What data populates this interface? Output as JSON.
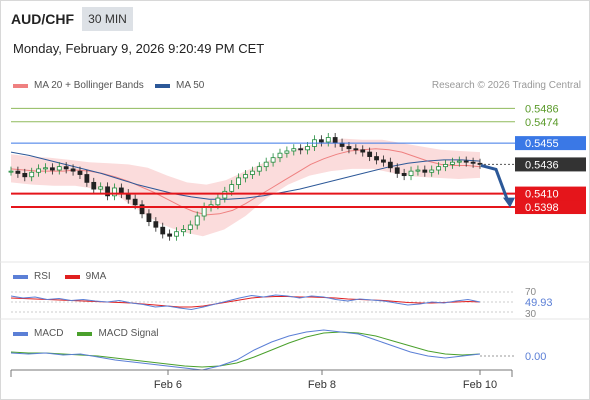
{
  "header": {
    "pair": "AUD/CHF",
    "timeframe": "30 MIN",
    "datetime": "Monday, February 9, 2026 9:20:49 PM CET",
    "credit": "Research © 2026 Trading Central"
  },
  "legend": {
    "ma20": "MA 20 + Bollinger Bands",
    "ma50": "MA 50",
    "ma20_color": "#ef8080",
    "ma50_color": "#2c5898"
  },
  "chart_data": {
    "type": "line",
    "title": "AUD/CHF",
    "x_ticks": [
      "Feb 6",
      "Feb 8",
      "Feb 10"
    ],
    "ylim": [
      0.5349,
      0.5497
    ],
    "price_series": [
      0.543,
      0.5428,
      0.5425,
      0.5429,
      0.5432,
      0.5433,
      0.5431,
      0.5434,
      0.5432,
      0.543,
      0.5427,
      0.542,
      0.5414,
      0.5416,
      0.5408,
      0.5415,
      0.541,
      0.5405,
      0.54,
      0.5392,
      0.5385,
      0.538,
      0.5374,
      0.5372,
      0.5376,
      0.5378,
      0.5382,
      0.539,
      0.5398,
      0.54,
      0.5406,
      0.5412,
      0.5418,
      0.5424,
      0.5427,
      0.543,
      0.5434,
      0.5438,
      0.5442,
      0.5446,
      0.5448,
      0.545,
      0.5449,
      0.5452,
      0.5458,
      0.5456,
      0.546,
      0.5455,
      0.5452,
      0.545,
      0.5449,
      0.5447,
      0.5443,
      0.544,
      0.5438,
      0.5433,
      0.5428,
      0.5426,
      0.543,
      0.5431,
      0.5429,
      0.5431,
      0.5434,
      0.5436,
      0.5438,
      0.5439,
      0.5438,
      0.5437,
      0.5436
    ],
    "series": [
      {
        "name": "MA 20",
        "values": [
          0.5432,
          0.5431,
          0.543,
          0.543,
          0.543,
          0.5431,
          0.543,
          0.5428,
          0.5425,
          0.5421,
          0.5416,
          0.5411,
          0.5405,
          0.5399,
          0.5394,
          0.5391,
          0.5392,
          0.5395,
          0.5401,
          0.5408,
          0.5415,
          0.5422,
          0.5429,
          0.5436,
          0.5441,
          0.5445,
          0.5448,
          0.5449,
          0.545,
          0.5449,
          0.5447,
          0.5443,
          0.5439,
          0.5436,
          0.5435,
          0.5435,
          0.5434
        ]
      },
      {
        "name": "MA 50",
        "values": [
          0.5447,
          0.5444,
          0.544,
          0.5436,
          0.5432,
          0.5428,
          0.5423,
          0.5418,
          0.5414,
          0.541,
          0.5407,
          0.5405,
          0.5405,
          0.5406,
          0.5408,
          0.5411,
          0.5414,
          0.5418,
          0.5422,
          0.5426,
          0.543,
          0.5434,
          0.5437,
          0.5439,
          0.544,
          0.544,
          0.5439
        ]
      },
      {
        "name": "Bollinger Upper",
        "values": [
          0.5445,
          0.5443,
          0.5442,
          0.544,
          0.5438,
          0.5437,
          0.5436,
          0.5433,
          0.5426,
          0.542,
          0.5418,
          0.5422,
          0.543,
          0.5438,
          0.5446,
          0.5452,
          0.5456,
          0.5459,
          0.5458,
          0.5458,
          0.5455,
          0.5452,
          0.5449,
          0.5448,
          0.5447
        ]
      },
      {
        "name": "Bollinger Lower",
        "values": [
          0.542,
          0.5418,
          0.5417,
          0.5417,
          0.5414,
          0.5408,
          0.5395,
          0.5383,
          0.5376,
          0.5372,
          0.5378,
          0.539,
          0.5406,
          0.5418,
          0.5426,
          0.543,
          0.5432,
          0.5432,
          0.5428,
          0.5425,
          0.5424,
          0.5423,
          0.5424
        ]
      }
    ],
    "levels": [
      {
        "value": 0.5486,
        "label": "0.5486",
        "color": "#8fba5b",
        "kind": "resistance"
      },
      {
        "value": 0.5474,
        "label": "0.5474",
        "color": "#8fba5b",
        "kind": "resistance"
      },
      {
        "value": 0.5455,
        "label": "0.5455",
        "color": "#3a78e6",
        "kind": "pivot"
      },
      {
        "value": 0.5436,
        "label": "0.5436",
        "color": "#333333",
        "kind": "last"
      },
      {
        "value": 0.541,
        "label": "0.5410",
        "color": "#e5151b",
        "kind": "target"
      },
      {
        "value": 0.5398,
        "label": "0.5398",
        "color": "#e5151b",
        "kind": "target"
      }
    ],
    "rsi": {
      "legend": [
        "RSI",
        "9MA"
      ],
      "colors": [
        "#5b7fd6",
        "#e02020"
      ],
      "levels": [
        "70",
        "30"
      ],
      "value": "49.93",
      "rsi_values": [
        62,
        58,
        60,
        55,
        57,
        53,
        55,
        52,
        50,
        53,
        48,
        45,
        40,
        42,
        38,
        35,
        40,
        46,
        52,
        58,
        63,
        60,
        64,
        62,
        58,
        62,
        60,
        55,
        52,
        56,
        54,
        52,
        48,
        44,
        46,
        50,
        48,
        52,
        55,
        50
      ],
      "ma_values": [
        58,
        57,
        56,
        55,
        54,
        53,
        52,
        51,
        50,
        49,
        48,
        46,
        44,
        42,
        40,
        40,
        42,
        46,
        50,
        54,
        58,
        60,
        61,
        61,
        60,
        60,
        59,
        58,
        56,
        55,
        54,
        53,
        51,
        49,
        48,
        48,
        49,
        50,
        51,
        50
      ]
    },
    "macd": {
      "legend": [
        "MACD",
        "MACD Signal"
      ],
      "colors": [
        "#5b7fd6",
        "#4aa02c"
      ],
      "value": "0.00",
      "macd_values": [
        0.0003,
        0.0002,
        0.0003,
        0.0001,
        0.0002,
        -0.0001,
        -0.0004,
        -0.0006,
        -0.0008,
        -0.001,
        -0.0012,
        -0.0014,
        -0.001,
        -0.0004,
        0.0006,
        0.0014,
        0.002,
        0.0024,
        0.0026,
        0.0024,
        0.0022,
        0.0016,
        0.001,
        0.0004,
        0.0,
        -0.0002,
        0.0,
        0.0002
      ],
      "signal_values": [
        0.0004,
        0.0003,
        0.0003,
        0.0002,
        0.0001,
        0.0,
        -0.0002,
        -0.0004,
        -0.0006,
        -0.0008,
        -0.001,
        -0.0011,
        -0.001,
        -0.0007,
        -0.0001,
        0.0006,
        0.0013,
        0.0019,
        0.0023,
        0.0024,
        0.0023,
        0.002,
        0.0015,
        0.001,
        0.0005,
        0.0002,
        0.0001,
        0.0002
      ]
    }
  }
}
